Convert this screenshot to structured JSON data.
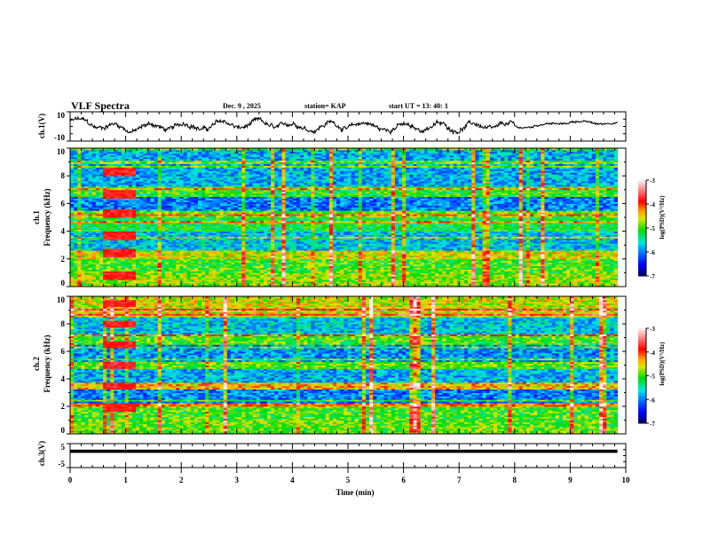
{
  "header": {
    "title": "VLF  Spectra",
    "date": "Dec. 9  , 2025",
    "station": "station= KAP",
    "start": "start  UT  =   13: 40: 1"
  },
  "chart_data": [
    {
      "type": "line",
      "name": "ch1-waveform",
      "ylabel": "ch.1(V)",
      "xlabel": "",
      "xlim": [
        0,
        10
      ],
      "ylim": [
        -10,
        10
      ],
      "ytick_labels": [
        "10",
        "-10"
      ],
      "x_end": 9.85,
      "description": "noisy oscillating voltage trace, roughly between -6 and 6 V, slowly varying",
      "anchor_points": {
        "x": [
          0,
          1,
          2,
          3,
          4,
          5,
          6,
          7,
          8,
          9,
          9.85
        ],
        "y": [
          3,
          -1,
          0,
          1,
          0,
          1,
          -1,
          0,
          -1,
          3,
          2
        ]
      }
    },
    {
      "type": "heatmap",
      "name": "ch1-spectrogram",
      "ylabel_line1": "ch.1",
      "ylabel_line2": "Frequency  (kHz)",
      "xlim": [
        0,
        10
      ],
      "x_end": 9.85,
      "ylim": [
        0,
        10
      ],
      "ytick_labels": [
        "0",
        "2",
        "4",
        "6",
        "8",
        "10"
      ],
      "colorbar": {
        "label": "log(PSD)(V²/Hz)",
        "range": [
          -7,
          -3
        ],
        "tick_labels": [
          "-3",
          "-4",
          "-5",
          "-6",
          "-7"
        ]
      },
      "bands": [
        {
          "f_lo": 0.0,
          "f_hi": 1.0,
          "level": -4.8
        },
        {
          "f_lo": 1.0,
          "f_hi": 2.0,
          "level": -5.0
        },
        {
          "f_lo": 2.0,
          "f_hi": 2.6,
          "level": -4.6
        },
        {
          "f_lo": 2.6,
          "f_hi": 4.0,
          "level": -5.7
        },
        {
          "f_lo": 4.0,
          "f_hi": 5.0,
          "level": -5.2
        },
        {
          "f_lo": 5.0,
          "f_hi": 5.5,
          "level": -4.9
        },
        {
          "f_lo": 5.5,
          "f_hi": 6.5,
          "level": -6.0
        },
        {
          "f_lo": 6.5,
          "f_hi": 7.3,
          "level": -5.1
        },
        {
          "f_lo": 7.3,
          "f_hi": 10.0,
          "level": -5.8
        }
      ],
      "burst": {
        "t_start": 0.6,
        "t_end": 1.15,
        "freqs_khz": [
          0.8,
          2.4,
          3.7,
          5.3,
          6.7,
          8.3
        ],
        "level": -3.8
      }
    },
    {
      "type": "heatmap",
      "name": "ch2-spectrogram",
      "ylabel_line1": "ch.2",
      "ylabel_line2": "Frequency  (kHz)",
      "xlim": [
        0,
        10
      ],
      "x_end": 9.85,
      "ylim": [
        0,
        10
      ],
      "ytick_labels": [
        "0",
        "2",
        "4",
        "6",
        "8",
        "10"
      ],
      "colorbar": {
        "label": "log(PSD)(V²/Hz)",
        "range": [
          -7,
          -3
        ],
        "tick_labels": [
          "-3",
          "-4",
          "-5",
          "-6",
          "-7"
        ]
      },
      "bands": [
        {
          "f_lo": 0.0,
          "f_hi": 1.0,
          "level": -4.9
        },
        {
          "f_lo": 1.0,
          "f_hi": 2.2,
          "level": -5.0
        },
        {
          "f_lo": 2.2,
          "f_hi": 3.2,
          "level": -6.0
        },
        {
          "f_lo": 3.2,
          "f_hi": 3.7,
          "level": -4.4
        },
        {
          "f_lo": 3.7,
          "f_hi": 4.8,
          "level": -5.8
        },
        {
          "f_lo": 4.8,
          "f_hi": 5.3,
          "level": -4.9
        },
        {
          "f_lo": 5.3,
          "f_hi": 6.5,
          "level": -5.9
        },
        {
          "f_lo": 6.5,
          "f_hi": 7.3,
          "level": -5.0
        },
        {
          "f_lo": 7.3,
          "f_hi": 8.5,
          "level": -5.7
        },
        {
          "f_lo": 8.5,
          "f_hi": 10.0,
          "level": -4.6
        }
      ],
      "burst": {
        "t_start": 0.6,
        "t_end": 1.15,
        "freqs_khz": [
          1.9,
          3.5,
          5.0,
          6.5,
          8.0,
          9.5
        ],
        "level": -3.8
      }
    },
    {
      "type": "line",
      "name": "ch3-waveform",
      "ylabel": "ch.3(V)",
      "xlabel": "Time  (min)",
      "xlim": [
        0,
        10
      ],
      "ylim": [
        -5,
        5
      ],
      "ytick_labels": [
        "5",
        "-5"
      ],
      "x_tick_labels": [
        "0",
        "1",
        "2",
        "3",
        "4",
        "5",
        "6",
        "7",
        "8",
        "9",
        "10"
      ],
      "x_end": 9.85,
      "y_center": 1.8,
      "y_band_halfwidth": 0.3
    }
  ]
}
